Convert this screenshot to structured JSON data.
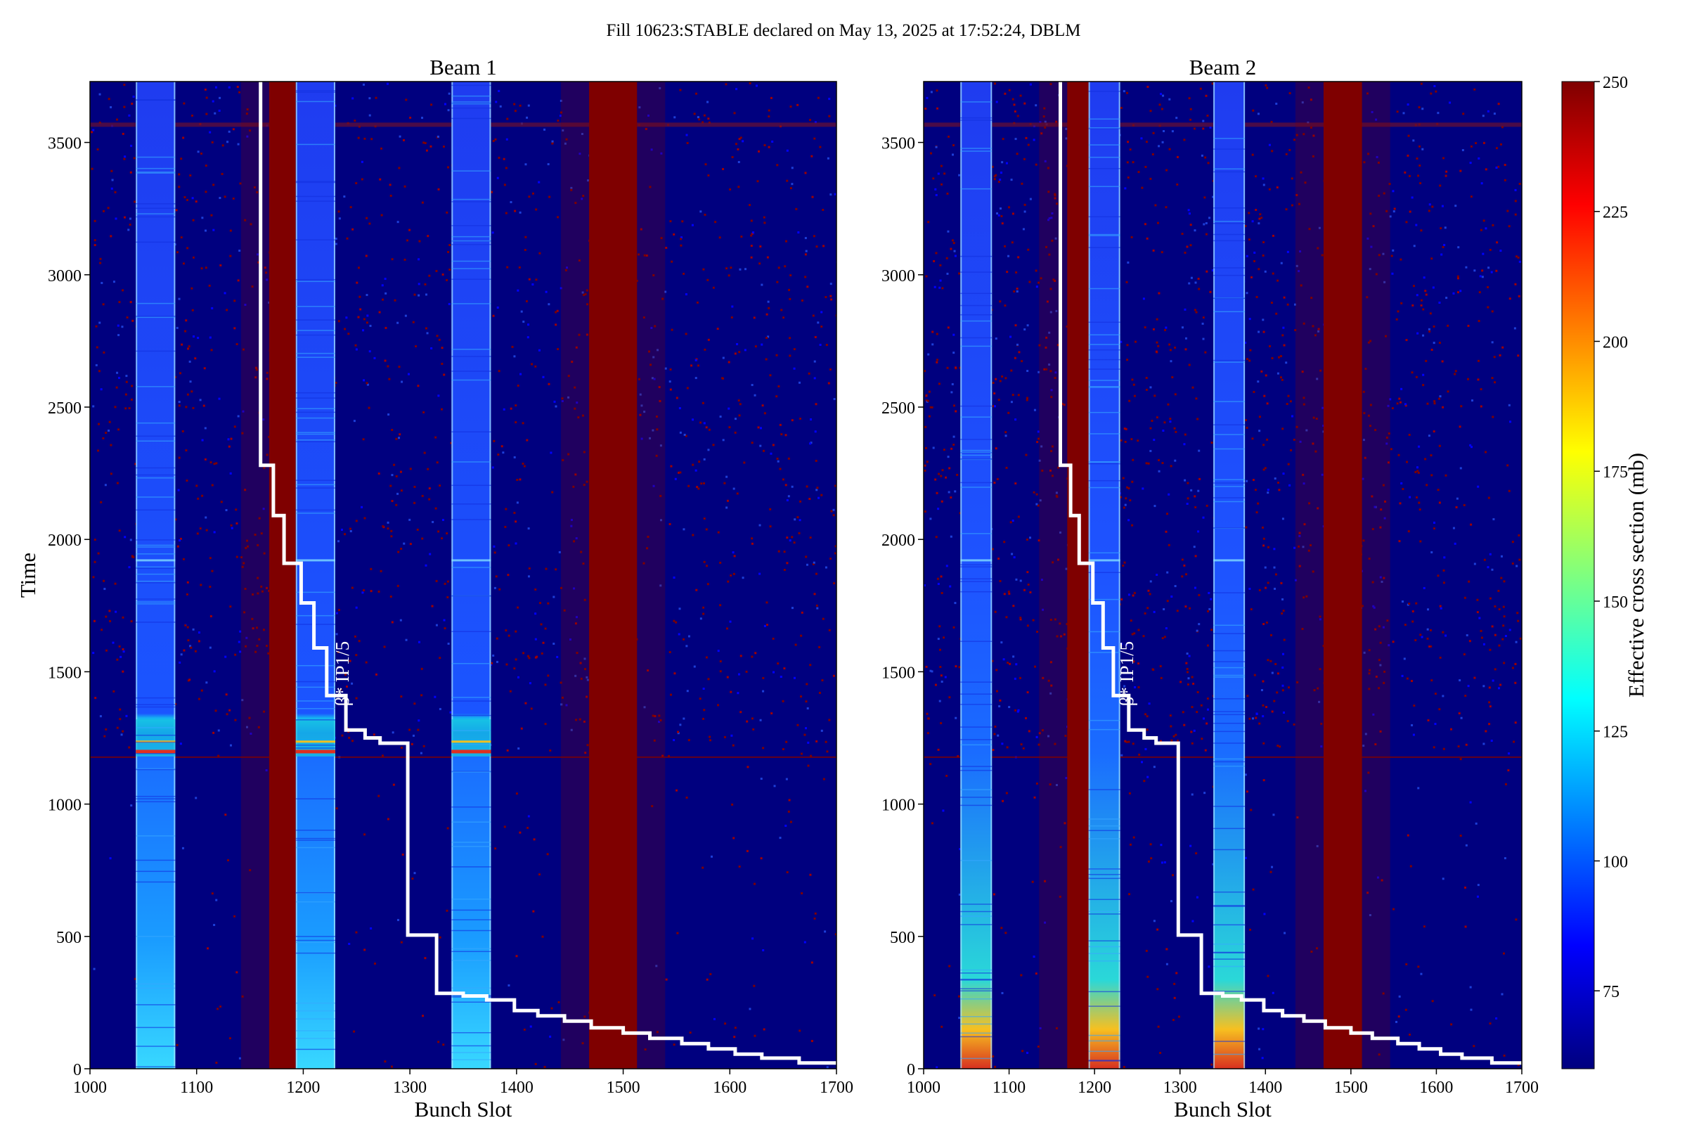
{
  "figure": {
    "suptitle": "Fill 10623:STABLE declared on May 13, 2025 at 17:52:24, DBLM"
  },
  "chart_data": [
    {
      "type": "heatmap",
      "title": "Beam 1",
      "xlabel": "Bunch Slot",
      "ylabel": "Time",
      "xlim": [
        1000,
        1700
      ],
      "ylim": [
        0,
        3730
      ],
      "xticks": [
        1000,
        1100,
        1200,
        1300,
        1400,
        1500,
        1600,
        1700
      ],
      "yticks": [
        0,
        500,
        1000,
        1500,
        2000,
        2500,
        3000,
        3500
      ],
      "train_bands": [
        [
          1043,
          1080
        ],
        [
          1193,
          1230
        ],
        [
          1339,
          1376
        ]
      ],
      "hot_bands": [
        [
          1168,
          1193
        ],
        [
          1468,
          1513
        ]
      ],
      "annotation": "β* IP1/5",
      "annotation_pos": [
        1232,
        1370
      ],
      "beta_star_step": {
        "x": [
          1160,
          1160,
          1172,
          1172,
          1182,
          1182,
          1198,
          1198,
          1210,
          1210,
          1222,
          1222,
          1240,
          1240,
          1258,
          1258,
          1272,
          1272,
          1298,
          1298,
          1325,
          1325,
          1350,
          1350,
          1372,
          1372,
          1398,
          1398,
          1420,
          1420,
          1445,
          1445,
          1470,
          1470,
          1500,
          1500,
          1525,
          1525,
          1555,
          1555,
          1580,
          1580,
          1605,
          1605,
          1630,
          1630,
          1665,
          1665,
          1700
        ],
        "y": [
          3730,
          2280,
          2280,
          2090,
          2090,
          1910,
          1910,
          1760,
          1760,
          1590,
          1590,
          1410,
          1410,
          1280,
          1280,
          1250,
          1250,
          1230,
          1230,
          505,
          505,
          285,
          285,
          275,
          275,
          260,
          260,
          220,
          220,
          200,
          200,
          180,
          180,
          155,
          155,
          135,
          135,
          115,
          115,
          95,
          95,
          75,
          75,
          55,
          55,
          40,
          40,
          22,
          22
        ]
      }
    },
    {
      "type": "heatmap",
      "title": "Beam 2",
      "xlabel": "Bunch Slot",
      "ylabel": "",
      "xlim": [
        1000,
        1700
      ],
      "ylim": [
        0,
        3730
      ],
      "xticks": [
        1000,
        1100,
        1200,
        1300,
        1400,
        1500,
        1600,
        1700
      ],
      "yticks": [
        0,
        500,
        1000,
        1500,
        2000,
        2500,
        3000,
        3500
      ],
      "train_bands": [
        [
          1043,
          1080
        ],
        [
          1193,
          1230
        ],
        [
          1339,
          1376
        ]
      ],
      "hot_bands": [
        [
          1168,
          1193
        ],
        [
          1468,
          1513
        ]
      ],
      "annotation": "β* IP1/5",
      "annotation_pos": [
        1232,
        1370
      ],
      "beta_star_step": {
        "x": [
          1160,
          1160,
          1172,
          1172,
          1182,
          1182,
          1198,
          1198,
          1210,
          1210,
          1222,
          1222,
          1240,
          1240,
          1258,
          1258,
          1272,
          1272,
          1298,
          1298,
          1325,
          1325,
          1350,
          1350,
          1372,
          1372,
          1398,
          1398,
          1420,
          1420,
          1445,
          1445,
          1470,
          1470,
          1500,
          1500,
          1525,
          1525,
          1555,
          1555,
          1580,
          1580,
          1605,
          1605,
          1630,
          1630,
          1665,
          1665,
          1700
        ],
        "y": [
          3730,
          2280,
          2280,
          2090,
          2090,
          1910,
          1910,
          1760,
          1760,
          1590,
          1590,
          1410,
          1410,
          1280,
          1280,
          1250,
          1250,
          1230,
          1230,
          505,
          505,
          285,
          285,
          275,
          275,
          260,
          260,
          220,
          220,
          200,
          200,
          180,
          180,
          155,
          155,
          135,
          135,
          115,
          115,
          95,
          95,
          75,
          75,
          55,
          55,
          40,
          40,
          22,
          22
        ]
      }
    }
  ],
  "colorbar": {
    "label": "Effective cross section (mb)",
    "range": [
      60,
      250
    ],
    "ticks": [
      75,
      100,
      125,
      150,
      175,
      200,
      225,
      250
    ],
    "colormap": "jet",
    "colors": [
      "#00007f",
      "#0000ff",
      "#007fff",
      "#00ffff",
      "#7fff7f",
      "#ffff00",
      "#ff7f00",
      "#ff0000",
      "#7f0000"
    ]
  },
  "colors": {
    "background": "#00007f",
    "hot": "#7f0000",
    "train": "#1a5cff",
    "line": "#ffffff"
  }
}
